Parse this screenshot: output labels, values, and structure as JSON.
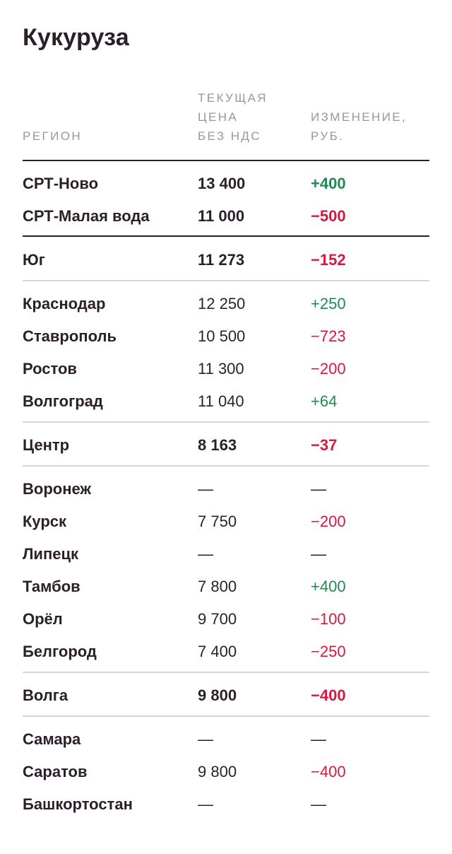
{
  "title": "Кукуруза",
  "headers": {
    "region": "РЕГИОН",
    "price_lines": [
      "ТЕКУЩАЯ",
      "ЦЕНА",
      "БЕЗ НДС"
    ],
    "change_lines": [
      "ИЗМЕНЕНИЕ,",
      "РУБ."
    ]
  },
  "colors": {
    "positive": "#22894f",
    "negative": "#d6193f",
    "text": "#2b1f2a",
    "header": "#9b9699"
  },
  "groups": [
    {
      "rows": [
        {
          "region": "СРТ-Ново",
          "price": "13 400",
          "change": "+400",
          "sign": "pos",
          "bold": true
        },
        {
          "region": "СРТ-Малая вода",
          "price": "11 000",
          "change": "−500",
          "sign": "neg",
          "bold": true
        }
      ]
    },
    {
      "rows": [
        {
          "region": "Юг",
          "price": "11 273",
          "change": "−152",
          "sign": "neg",
          "bold": true
        }
      ]
    },
    {
      "rows": [
        {
          "region": "Краснодар",
          "price": "12 250",
          "change": "+250",
          "sign": "pos",
          "bold": false
        },
        {
          "region": "Ставрополь",
          "price": "10 500",
          "change": "−723",
          "sign": "neg",
          "bold": false
        },
        {
          "region": "Ростов",
          "price": "11 300",
          "change": "−200",
          "sign": "neg",
          "bold": false
        },
        {
          "region": "Волгоград",
          "price": "11 040",
          "change": "+64",
          "sign": "pos",
          "bold": false
        }
      ]
    },
    {
      "rows": [
        {
          "region": "Центр",
          "price": "8 163",
          "change": "−37",
          "sign": "neg",
          "bold": true
        }
      ]
    },
    {
      "rows": [
        {
          "region": "Воронеж",
          "price": "—",
          "change": "—",
          "sign": "neu",
          "bold": false
        },
        {
          "region": "Курск",
          "price": "7 750",
          "change": "−200",
          "sign": "neg",
          "bold": false
        },
        {
          "region": "Липецк",
          "price": "—",
          "change": "—",
          "sign": "neu",
          "bold": false
        },
        {
          "region": "Тамбов",
          "price": "7 800",
          "change": "+400",
          "sign": "pos",
          "bold": false
        },
        {
          "region": "Орёл",
          "price": "9 700",
          "change": "−100",
          "sign": "neg",
          "bold": false
        },
        {
          "region": "Белгород",
          "price": "7 400",
          "change": "−250",
          "sign": "neg",
          "bold": false
        }
      ]
    },
    {
      "rows": [
        {
          "region": "Волга",
          "price": "9 800",
          "change": "−400",
          "sign": "neg",
          "bold": true
        }
      ]
    },
    {
      "rows": [
        {
          "region": "Самара",
          "price": "—",
          "change": "—",
          "sign": "neu",
          "bold": false
        },
        {
          "region": "Саратов",
          "price": "9 800",
          "change": "−400",
          "sign": "neg",
          "bold": false
        },
        {
          "region": "Башкортостан",
          "price": "—",
          "change": "—",
          "sign": "neu",
          "bold": false
        }
      ]
    }
  ]
}
